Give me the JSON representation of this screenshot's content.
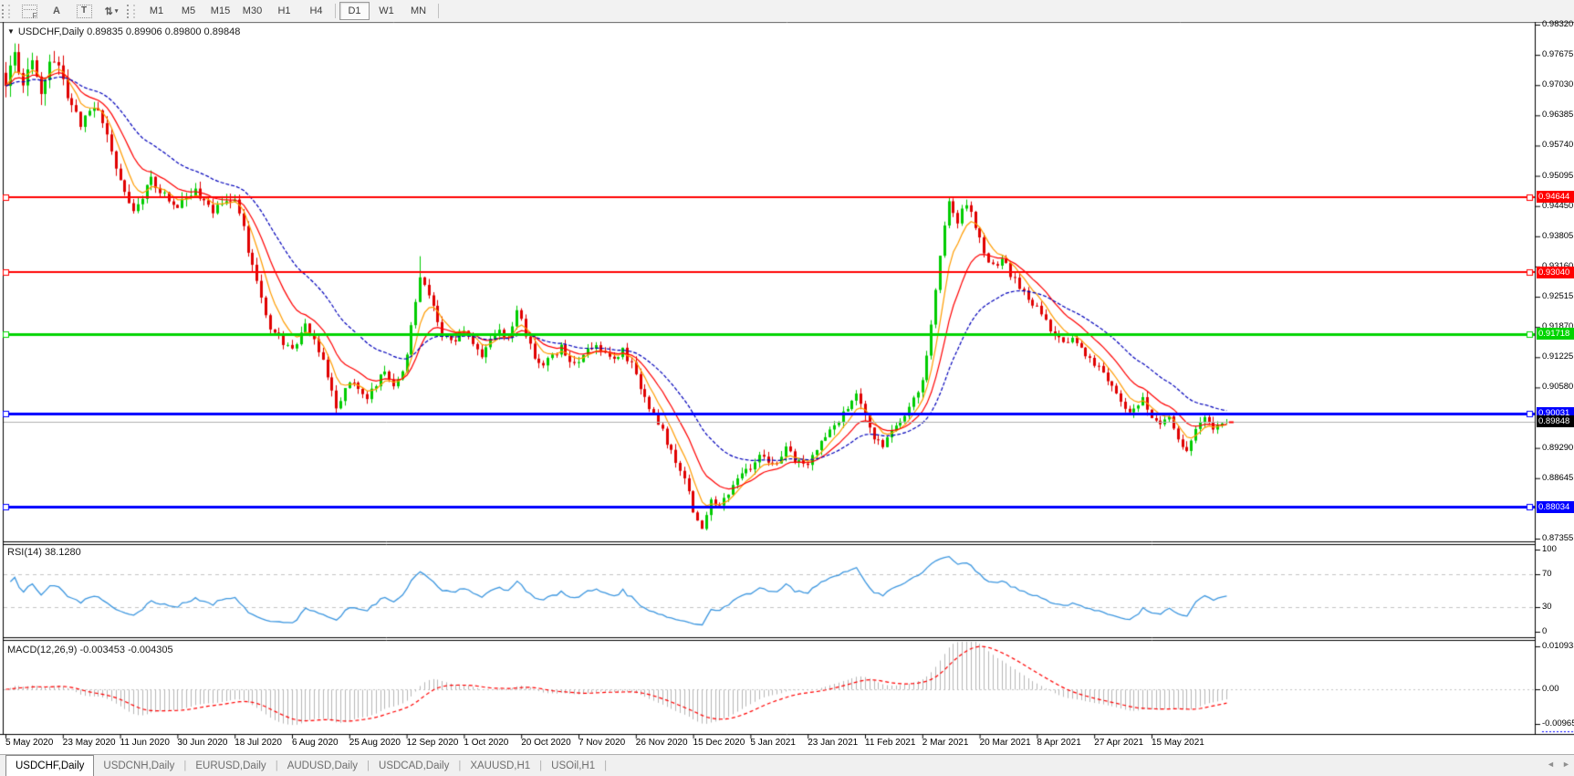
{
  "toolbar": {
    "tools": [
      {
        "name": "fibo-grid-icon",
        "glyph": "F"
      },
      {
        "name": "text-label-icon",
        "glyph": "A"
      },
      {
        "name": "text-box-icon",
        "glyph": "T"
      },
      {
        "name": "arrows-tool-icon",
        "glyph": "⇅"
      },
      {
        "name": "dropdown-caret-icon",
        "glyph": "▾"
      }
    ],
    "timeframes": [
      "M1",
      "M5",
      "M15",
      "M30",
      "H1",
      "H4",
      "D1",
      "W1",
      "MN"
    ],
    "active_timeframe": "D1"
  },
  "chart": {
    "title_text": "USDCHF,Daily 0.89835 0.89906 0.89800 0.89848",
    "title_triangle": "▼"
  },
  "rsi": {
    "label": "RSI(14) 38.1280",
    "ticks": [
      "100",
      "70",
      "30",
      "0"
    ],
    "levels": [
      70,
      30
    ],
    "line_color": "#3d97e0"
  },
  "macd": {
    "label": "MACD(12,26,9) -0.003453 -0.004305",
    "ticks": [
      "0.010933",
      "0.00",
      "-0.009655"
    ],
    "histogram_color": "#b6b6b6",
    "signal_color": "#ff0000"
  },
  "price_axis_ticks": [
    "0.98320",
    "0.97675",
    "0.97030",
    "0.96385",
    "0.95740",
    "0.95095",
    "0.94450",
    "0.93805",
    "0.93160",
    "0.92515",
    "0.91870",
    "0.91225",
    "0.90580",
    "0.89290",
    "0.88645",
    "0.87355"
  ],
  "date_axis": {
    "labels": [
      "5 May 2020",
      "23 May 2020",
      "11 Jun 2020",
      "30 Jun 2020",
      "18 Jul 2020",
      "6 Aug 2020",
      "25 Aug 2020",
      "12 Sep 2020",
      "1 Oct 2020",
      "20 Oct 2020",
      "7 Nov 2020",
      "26 Nov 2020",
      "15 Dec 2020",
      "5 Jan 2021",
      "23 Jan 2021",
      "11 Feb 2021",
      "2 Mar 2021",
      "20 Mar 2021",
      "8 Apr 2021",
      "27 Apr 2021",
      "15 May 2021"
    ]
  },
  "tabs": {
    "items": [
      {
        "label": "USDCHF,Daily",
        "active": true
      },
      {
        "label": "USDCNH,Daily",
        "active": false
      },
      {
        "label": "EURUSD,Daily",
        "active": false
      },
      {
        "label": "AUDUSD,Daily",
        "active": false
      },
      {
        "label": "USDCAD,Daily",
        "active": false
      },
      {
        "label": "XAUUSD,H1",
        "active": false
      },
      {
        "label": "USOil,H1",
        "active": false
      }
    ],
    "scroll_left": "◄",
    "scroll_right": "►"
  },
  "chart_data": {
    "type": "candlestick",
    "symbol": "USDCHF",
    "timeframe": "Daily",
    "last_bar": {
      "open": 0.89835,
      "high": 0.89906,
      "low": 0.898,
      "close": 0.89848
    },
    "price_axis_range": [
      0.87355,
      0.9832
    ],
    "bars_total": 278,
    "bull_color": "#00cc00",
    "bear_color": "#e00000",
    "levels": [
      {
        "price": 0.94644,
        "label": "0.94644",
        "color": "#ff0000",
        "width": 2
      },
      {
        "price": 0.9304,
        "label": "0.93040",
        "color": "#ff0000",
        "width": 2
      },
      {
        "price": 0.91718,
        "label": "0.91718",
        "color": "#00d400",
        "width": 3
      },
      {
        "price": 0.90031,
        "label": "0.90031",
        "color": "#0000ff",
        "width": 3
      },
      {
        "price": 0.88034,
        "label": "0.88034",
        "color": "#0000ff",
        "width": 3
      }
    ],
    "current_price": {
      "value": 0.89848,
      "label": "0.89848",
      "box_color": "#000000",
      "line_color": "#b0b0b0"
    },
    "moving_averages": [
      {
        "name": "fast-ma",
        "color": "#ff9c00",
        "period": 6,
        "style": "solid"
      },
      {
        "name": "mid-ma",
        "color": "#ff0000",
        "period": 13,
        "style": "solid"
      },
      {
        "name": "slow-ma",
        "color": "#0000bb",
        "period": 28,
        "style": "dashed"
      }
    ],
    "rsi_last": 38.128,
    "macd_last": -0.003453,
    "macd_signal_last": -0.004305,
    "macd_axis_max": 0.010933,
    "macd_axis_min": -0.009655,
    "close_waypoints": [
      [
        0,
        0.971
      ],
      [
        2,
        0.9762
      ],
      [
        4,
        0.97
      ],
      [
        6,
        0.9745
      ],
      [
        8,
        0.969
      ],
      [
        10,
        0.9752
      ],
      [
        13,
        0.9718
      ],
      [
        15,
        0.966
      ],
      [
        17,
        0.9612
      ],
      [
        19,
        0.9645
      ],
      [
        21,
        0.9658
      ],
      [
        24,
        0.9565
      ],
      [
        26,
        0.9492
      ],
      [
        29,
        0.943
      ],
      [
        31,
        0.9462
      ],
      [
        33,
        0.9505
      ],
      [
        36,
        0.9468
      ],
      [
        39,
        0.9446
      ],
      [
        43,
        0.9476
      ],
      [
        47,
        0.9436
      ],
      [
        50,
        0.9448
      ],
      [
        52,
        0.9456
      ],
      [
        54,
        0.9398
      ],
      [
        56,
        0.931
      ],
      [
        58,
        0.9248
      ],
      [
        60,
        0.9192
      ],
      [
        62,
        0.9165
      ],
      [
        65,
        0.9136
      ],
      [
        68,
        0.9188
      ],
      [
        70,
        0.9158
      ],
      [
        72,
        0.912
      ],
      [
        74,
        0.905
      ],
      [
        75,
        0.9006
      ],
      [
        76,
        0.9028
      ],
      [
        78,
        0.9075
      ],
      [
        80,
        0.9058
      ],
      [
        82,
        0.904
      ],
      [
        84,
        0.9068
      ],
      [
        86,
        0.9092
      ],
      [
        88,
        0.906
      ],
      [
        90,
        0.9085
      ],
      [
        91,
        0.913
      ],
      [
        93,
        0.924
      ],
      [
        94,
        0.9292
      ],
      [
        95,
        0.9275
      ],
      [
        97,
        0.9228
      ],
      [
        99,
        0.917
      ],
      [
        101,
        0.9152
      ],
      [
        103,
        0.9175
      ],
      [
        104,
        0.9186
      ],
      [
        106,
        0.9158
      ],
      [
        108,
        0.913
      ],
      [
        110,
        0.9155
      ],
      [
        112,
        0.918
      ],
      [
        114,
        0.9162
      ],
      [
        116,
        0.9226
      ],
      [
        118,
        0.917
      ],
      [
        120,
        0.9122
      ],
      [
        122,
        0.91
      ],
      [
        124,
        0.9128
      ],
      [
        126,
        0.9142
      ],
      [
        128,
        0.912
      ],
      [
        130,
        0.9108
      ],
      [
        132,
        0.9135
      ],
      [
        134,
        0.9152
      ],
      [
        136,
        0.9128
      ],
      [
        138,
        0.9118
      ],
      [
        140,
        0.9136
      ],
      [
        142,
        0.9105
      ],
      [
        144,
        0.906
      ],
      [
        146,
        0.9018
      ],
      [
        148,
        0.8985
      ],
      [
        150,
        0.8942
      ],
      [
        152,
        0.8905
      ],
      [
        154,
        0.887
      ],
      [
        156,
        0.8798
      ],
      [
        158,
        0.8764
      ],
      [
        160,
        0.8818
      ],
      [
        162,
        0.8802
      ],
      [
        164,
        0.883
      ],
      [
        166,
        0.8862
      ],
      [
        169,
        0.889
      ],
      [
        171,
        0.8918
      ],
      [
        173,
        0.8898
      ],
      [
        175,
        0.8888
      ],
      [
        177,
        0.8925
      ],
      [
        179,
        0.8905
      ],
      [
        182,
        0.8896
      ],
      [
        184,
        0.893
      ],
      [
        186,
        0.8952
      ],
      [
        188,
        0.8975
      ],
      [
        190,
        0.9002
      ],
      [
        193,
        0.904
      ],
      [
        195,
        0.8995
      ],
      [
        197,
        0.8952
      ],
      [
        199,
        0.8935
      ],
      [
        201,
        0.8965
      ],
      [
        203,
        0.8985
      ],
      [
        205,
        0.901
      ],
      [
        207,
        0.9048
      ],
      [
        208,
        0.908
      ],
      [
        209,
        0.912
      ],
      [
        210,
        0.92
      ],
      [
        211,
        0.927
      ],
      [
        212,
        0.934
      ],
      [
        213,
        0.94
      ],
      [
        214,
        0.945
      ],
      [
        215,
        0.9438
      ],
      [
        216,
        0.941
      ],
      [
        217,
        0.9435
      ],
      [
        218,
        0.9448
      ],
      [
        219,
        0.9425
      ],
      [
        220,
        0.94
      ],
      [
        221,
        0.9372
      ],
      [
        222,
        0.9342
      ],
      [
        224,
        0.9315
      ],
      [
        226,
        0.9332
      ],
      [
        228,
        0.93
      ],
      [
        230,
        0.9272
      ],
      [
        232,
        0.9248
      ],
      [
        234,
        0.9228
      ],
      [
        236,
        0.9196
      ],
      [
        238,
        0.9168
      ],
      [
        240,
        0.9152
      ],
      [
        242,
        0.9168
      ],
      [
        244,
        0.9136
      ],
      [
        246,
        0.9122
      ],
      [
        248,
        0.91
      ],
      [
        250,
        0.9072
      ],
      [
        252,
        0.9045
      ],
      [
        254,
        0.9018
      ],
      [
        256,
        0.9006
      ],
      [
        258,
        0.903
      ],
      [
        260,
        0.9
      ],
      [
        262,
        0.8976
      ],
      [
        264,
        0.8996
      ],
      [
        266,
        0.8946
      ],
      [
        268,
        0.8926
      ],
      [
        270,
        0.8962
      ],
      [
        272,
        0.8996
      ],
      [
        274,
        0.8972
      ],
      [
        276,
        0.8988
      ],
      [
        277,
        0.89848
      ]
    ],
    "wick_overrides": [
      {
        "bar": 2,
        "high": 0.9792
      },
      {
        "bar": 75,
        "low": 0.9
      },
      {
        "bar": 94,
        "high": 0.9338
      },
      {
        "bar": 158,
        "low": 0.8762
      },
      {
        "bar": 214,
        "high": 0.94644
      },
      {
        "bar": 268,
        "low": 0.892
      }
    ]
  }
}
